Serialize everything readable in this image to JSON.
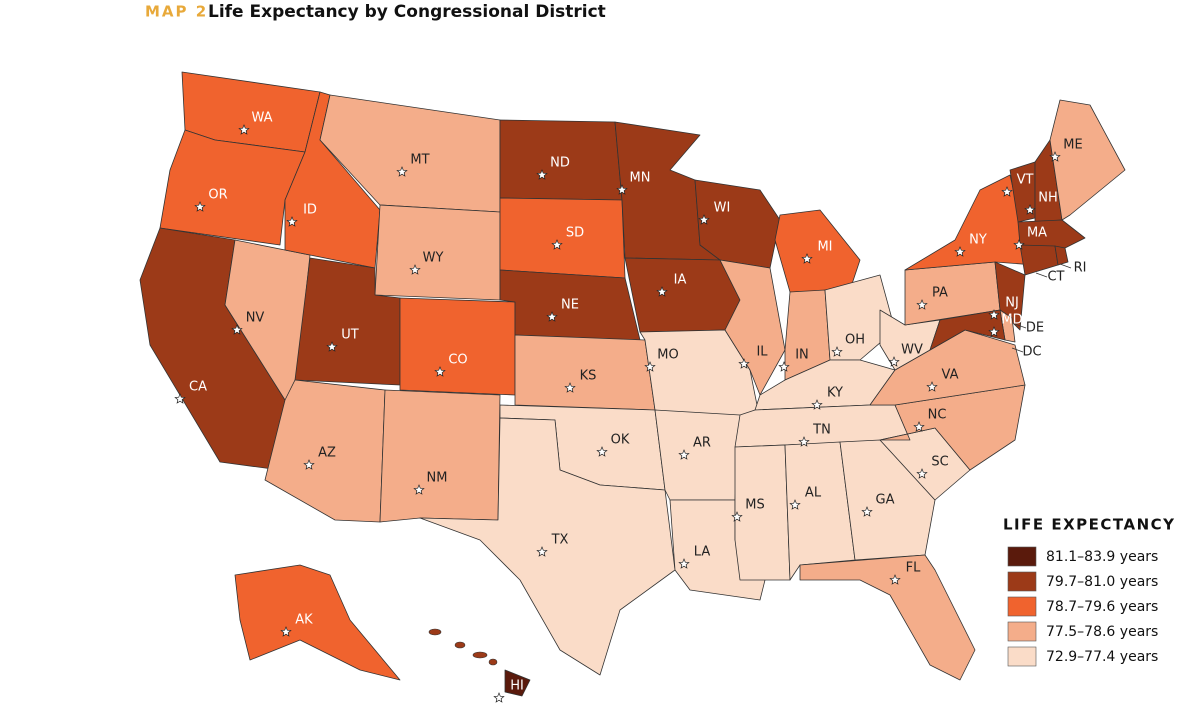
{
  "header": {
    "label": "MAP 2",
    "title": "Life Expectancy by Congressional District"
  },
  "legend": {
    "title": "LIFE EXPECTANCY",
    "items": [
      {
        "label": "81.1–83.9 years",
        "color": "#5a1a0c"
      },
      {
        "label": "79.7–81.0 years",
        "color": "#9c3a18"
      },
      {
        "label": "78.7–79.6 years",
        "color": "#f0632e"
      },
      {
        "label": "77.5–78.6 years",
        "color": "#f4ad8a"
      },
      {
        "label": "72.9–77.4 years",
        "color": "#fadcc8"
      }
    ]
  },
  "states": [
    {
      "label": "WA",
      "color": "#f0632e"
    },
    {
      "label": "OR",
      "color": "#f0632e"
    },
    {
      "label": "CA",
      "color": "#9c3a18"
    },
    {
      "label": "NV",
      "color": "#f4ad8a"
    },
    {
      "label": "ID",
      "color": "#f0632e"
    },
    {
      "label": "MT",
      "color": "#f4ad8a"
    },
    {
      "label": "WY",
      "color": "#f4ad8a"
    },
    {
      "label": "UT",
      "color": "#9c3a18"
    },
    {
      "label": "CO",
      "color": "#f0632e"
    },
    {
      "label": "AZ",
      "color": "#f4ad8a"
    },
    {
      "label": "NM",
      "color": "#f4ad8a"
    },
    {
      "label": "ND",
      "color": "#9c3a18"
    },
    {
      "label": "SD",
      "color": "#f0632e"
    },
    {
      "label": "NE",
      "color": "#9c3a18"
    },
    {
      "label": "KS",
      "color": "#f4ad8a"
    },
    {
      "label": "OK",
      "color": "#fadcc8"
    },
    {
      "label": "TX",
      "color": "#fadcc8"
    },
    {
      "label": "MN",
      "color": "#9c3a18"
    },
    {
      "label": "IA",
      "color": "#9c3a18"
    },
    {
      "label": "MO",
      "color": "#fadcc8"
    },
    {
      "label": "AR",
      "color": "#fadcc8"
    },
    {
      "label": "LA",
      "color": "#fadcc8"
    },
    {
      "label": "WI",
      "color": "#9c3a18"
    },
    {
      "label": "IL",
      "color": "#f4ad8a"
    },
    {
      "label": "MI",
      "color": "#f0632e"
    },
    {
      "label": "IN",
      "color": "#f4ad8a"
    },
    {
      "label": "OH",
      "color": "#fadcc8"
    },
    {
      "label": "KY",
      "color": "#fadcc8"
    },
    {
      "label": "TN",
      "color": "#fadcc8"
    },
    {
      "label": "MS",
      "color": "#fadcc8"
    },
    {
      "label": "AL",
      "color": "#fadcc8"
    },
    {
      "label": "GA",
      "color": "#fadcc8"
    },
    {
      "label": "FL",
      "color": "#f4ad8a"
    },
    {
      "label": "SC",
      "color": "#fadcc8"
    },
    {
      "label": "NC",
      "color": "#f4ad8a"
    },
    {
      "label": "VA",
      "color": "#f4ad8a"
    },
    {
      "label": "WV",
      "color": "#fadcc8"
    },
    {
      "label": "PA",
      "color": "#f4ad8a"
    },
    {
      "label": "NY",
      "color": "#f0632e"
    },
    {
      "label": "VT",
      "color": "#9c3a18"
    },
    {
      "label": "NH",
      "color": "#9c3a18"
    },
    {
      "label": "ME",
      "color": "#f4ad8a"
    },
    {
      "label": "MA",
      "color": "#9c3a18"
    },
    {
      "label": "CT",
      "color": "#9c3a18"
    },
    {
      "label": "RI",
      "color": "#9c3a18"
    },
    {
      "label": "NJ",
      "color": "#9c3a18"
    },
    {
      "label": "DE",
      "color": "#f4ad8a"
    },
    {
      "label": "MD",
      "color": "#9c3a18"
    },
    {
      "label": "DC",
      "color": "#9c3a18"
    },
    {
      "label": "AK",
      "color": "#f0632e"
    },
    {
      "label": "HI",
      "color": "#5a1a0c"
    }
  ]
}
